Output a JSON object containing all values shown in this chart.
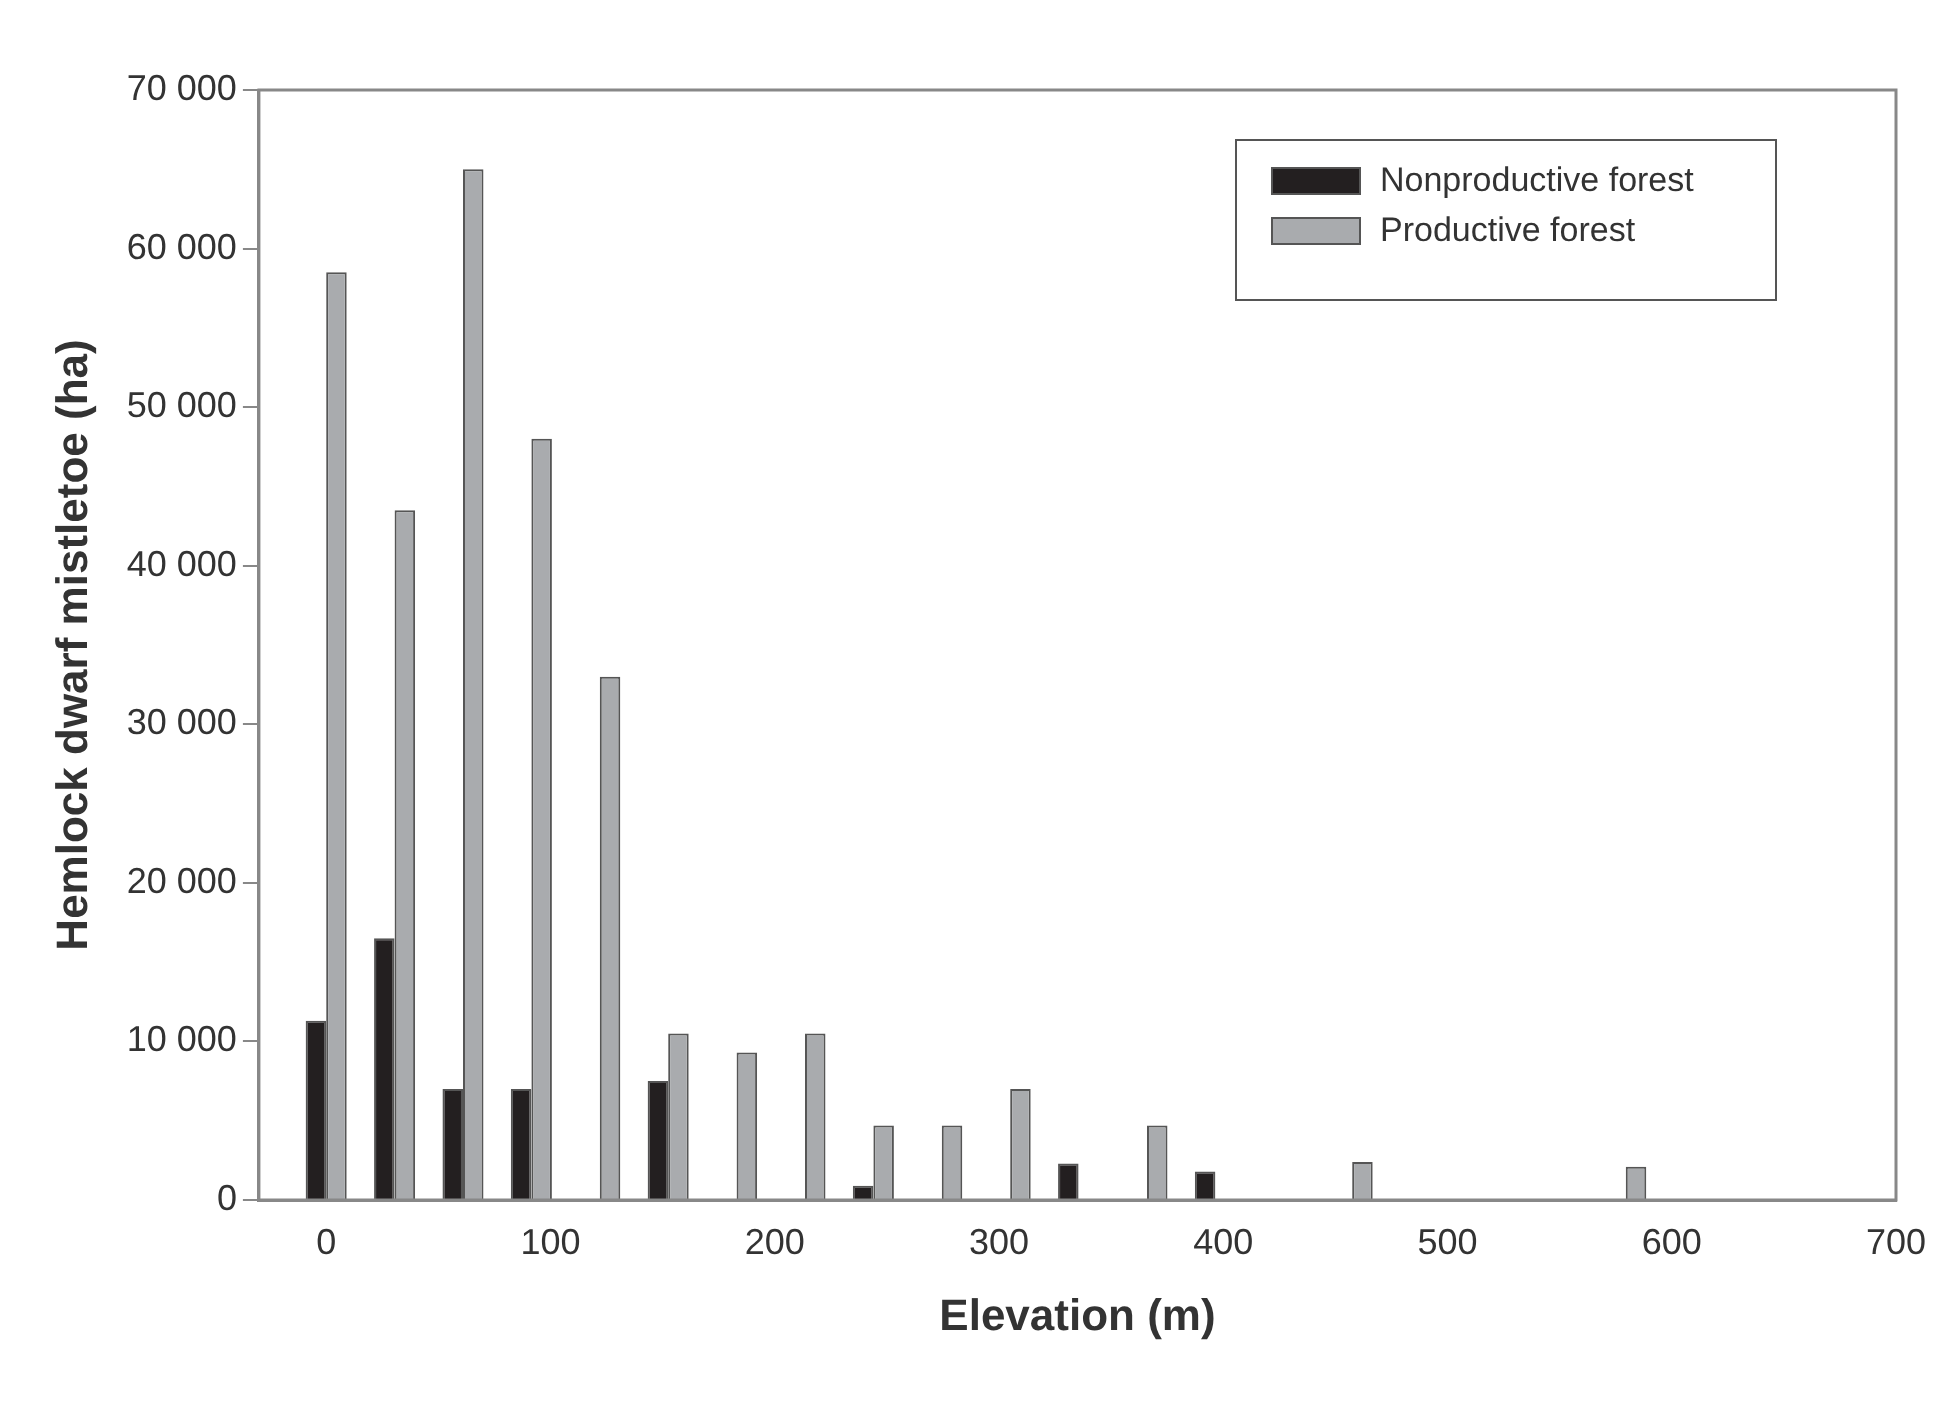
{
  "chart_data": {
    "type": "bar",
    "xlabel": "Elevation (m)",
    "ylabel": "Hemlock dwarf mistletoe (ha)",
    "x": [
      0,
      30.5,
      61,
      91.5,
      122,
      152.5,
      183,
      213.5,
      244,
      274.5,
      305,
      335.5,
      366,
      396.5,
      457.5,
      579.5
    ],
    "series": [
      {
        "name": "Nonproductive forest",
        "color": "#231f20",
        "values": [
          11300,
          16500,
          7000,
          7000,
          null,
          7500,
          null,
          null,
          900,
          null,
          null,
          2300,
          null,
          1800,
          null,
          null
        ]
      },
      {
        "name": "Productive forest",
        "color": "#a9abae",
        "values": [
          58500,
          43500,
          65000,
          48000,
          33000,
          10500,
          9300,
          10500,
          4700,
          4700,
          7000,
          null,
          4700,
          null,
          2400,
          2100
        ]
      }
    ],
    "xlim": [
      -30,
      700
    ],
    "xticks": [
      0,
      100,
      200,
      300,
      400,
      500,
      600,
      700
    ],
    "ylim": [
      0,
      70000
    ],
    "yticks": [
      0,
      {
        "value": 10000,
        "label": "10 000"
      },
      {
        "value": 20000,
        "label": "20 000"
      },
      {
        "value": 30000,
        "label": "30 000"
      },
      {
        "value": 40000,
        "label": "40 000"
      },
      {
        "value": 50000,
        "label": "50 000"
      },
      {
        "value": 60000,
        "label": "60 000"
      },
      {
        "value": 70000,
        "label": "70 000"
      }
    ],
    "grid": false,
    "legend": "top right"
  }
}
